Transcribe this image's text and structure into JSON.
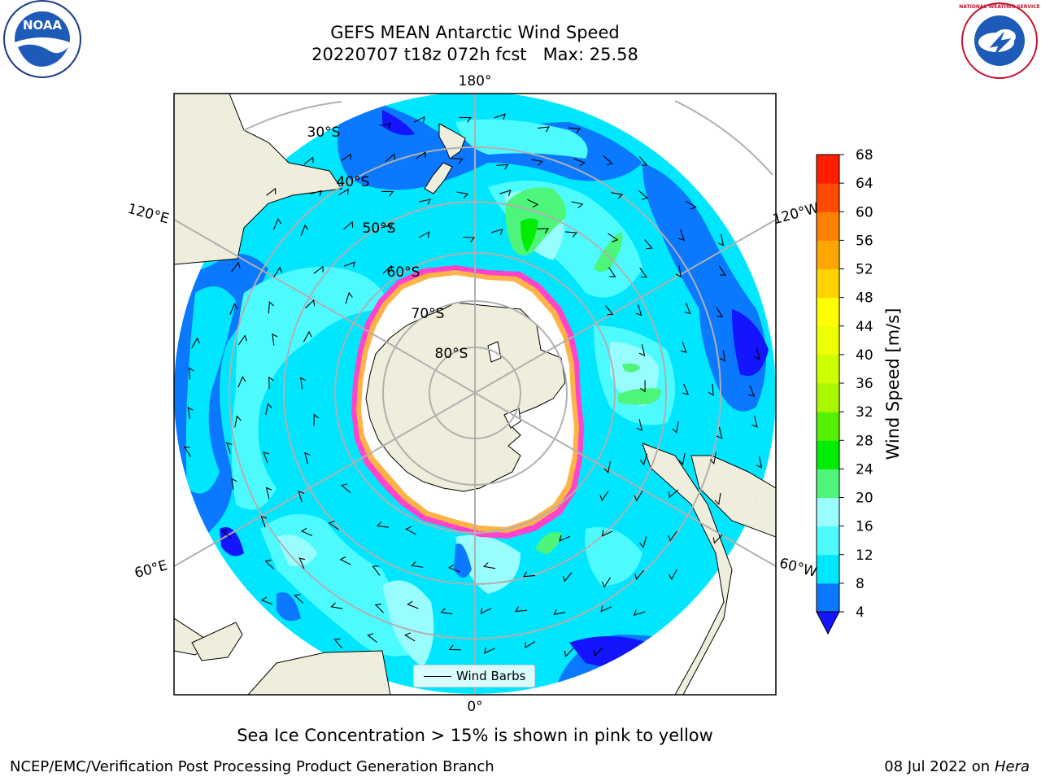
{
  "header": {
    "title_line1": "GEFS MEAN Antarctic Wind Speed",
    "title_line2": "20220707 t18z 072h fcst   Max: 25.58"
  },
  "logos": {
    "left": {
      "icon": "noaa-logo",
      "text": "NOAA"
    },
    "right": {
      "icon": "nws-logo",
      "text": "NATIONAL WEATHER SERVICE"
    }
  },
  "map": {
    "projection": "south-polar-stereographic",
    "longitude_labels": {
      "top": "180°",
      "bottom": "0°",
      "upper_left": "120°E",
      "upper_right": "120°W",
      "lower_left": "60°E",
      "lower_right": "60°W"
    },
    "latitude_labels": [
      "30°S",
      "40°S",
      "50°S",
      "60°S",
      "70°S",
      "80°S"
    ],
    "legend": {
      "label": "Wind Barbs"
    },
    "colors": {
      "land": "#efeedc",
      "ice_edge": "#ff44cc",
      "ice_edge_inner": "#ffb347",
      "grid": "#b0b0b0"
    }
  },
  "colorbar": {
    "label": "Wind Speed [m/s]",
    "ticks": [
      4,
      8,
      12,
      16,
      20,
      24,
      28,
      32,
      36,
      40,
      44,
      48,
      52,
      56,
      60,
      64,
      68
    ],
    "bin_colors": [
      "#0a78ff",
      "#00e6ff",
      "#4dfbff",
      "#99fdff",
      "#4df57a",
      "#00ec00",
      "#55f000",
      "#aaf500",
      "#ccff00",
      "#eeff00",
      "#ffff00",
      "#ffd200",
      "#ffa500",
      "#ff7f00",
      "#ff4a00",
      "#ff1e00"
    ],
    "extend_color": "#1414ff"
  },
  "caption": "Sea Ice Concentration > 15% is shown in pink to yellow",
  "footer": {
    "left": "NCEP/EMC/Verification Post Processing Product Generation Branch",
    "right_date": "08 Jul 2022 on",
    "right_host": "Hera"
  }
}
